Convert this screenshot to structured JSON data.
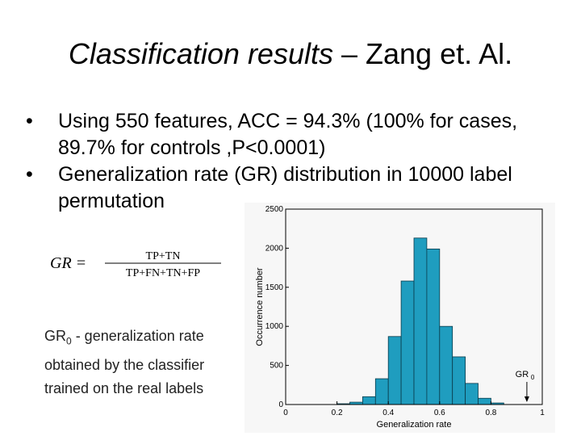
{
  "slide": {
    "title_italic": "Classification results",
    "title_rest": " – Zang et. Al.",
    "bullets": [
      {
        "text": "Using 550 features, ACC = 94.3% (100% for cases, 89.7% for controls ,P<0.0001)"
      },
      {
        "text": "Generalization rate (GR) distribution in 10000 label permutation"
      }
    ],
    "bullet_marker": "•",
    "formula": {
      "lhs": "GR =",
      "numerator": "TP+TN",
      "denominator": "TP+FN+TN+FP"
    },
    "note": {
      "term": "GR",
      "sub": "0",
      "text": " - generalization rate obtained by the classifier trained on the real labels"
    }
  },
  "chart_data": {
    "type": "bar",
    "title": "",
    "xlabel": "Generalization rate",
    "ylabel": "Occurrence number",
    "xlim": [
      0,
      1
    ],
    "ylim": [
      0,
      2500
    ],
    "xticks": [
      "0",
      "0.2",
      "0.4",
      "0.6",
      "0.8",
      "1"
    ],
    "yticks": [
      "0",
      "500",
      "1000",
      "1500",
      "2000",
      "2500"
    ],
    "bin_width": 0.05,
    "bins_x": [
      0.2,
      0.25,
      0.3,
      0.35,
      0.4,
      0.45,
      0.5,
      0.55,
      0.6,
      0.65,
      0.7,
      0.75,
      0.8
    ],
    "values": [
      10,
      30,
      100,
      330,
      870,
      1580,
      2130,
      1990,
      1000,
      610,
      270,
      80,
      20
    ],
    "bar_color": "#1f9dbf",
    "annotation": {
      "label": "GR",
      "sub": "0",
      "x": 0.94
    }
  }
}
